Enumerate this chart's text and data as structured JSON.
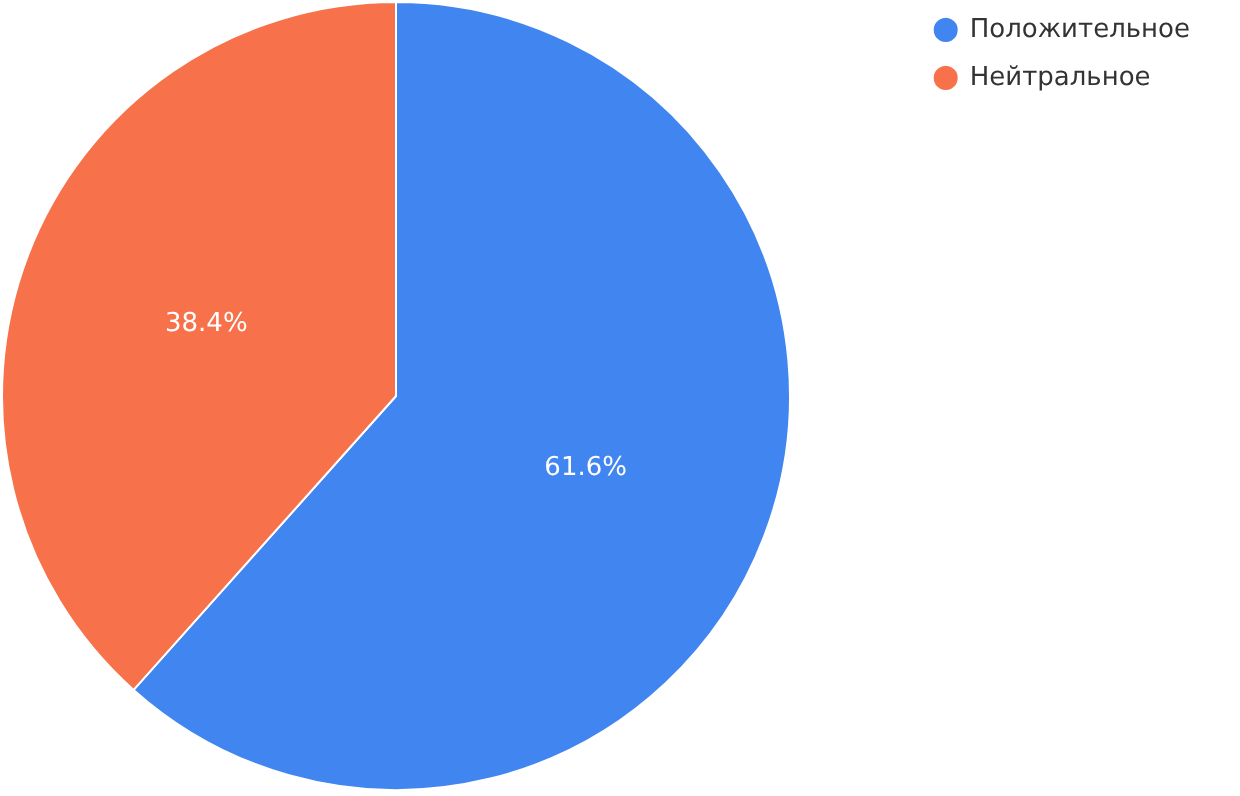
{
  "chart_data": {
    "type": "pie",
    "categories": [
      "Положительное",
      "Нейтральное"
    ],
    "values": [
      61.6,
      38.4
    ],
    "colors": [
      "#4186f0",
      "#f7714a"
    ],
    "value_labels": [
      "61.6%",
      "38.4%"
    ],
    "legend": "top right"
  }
}
